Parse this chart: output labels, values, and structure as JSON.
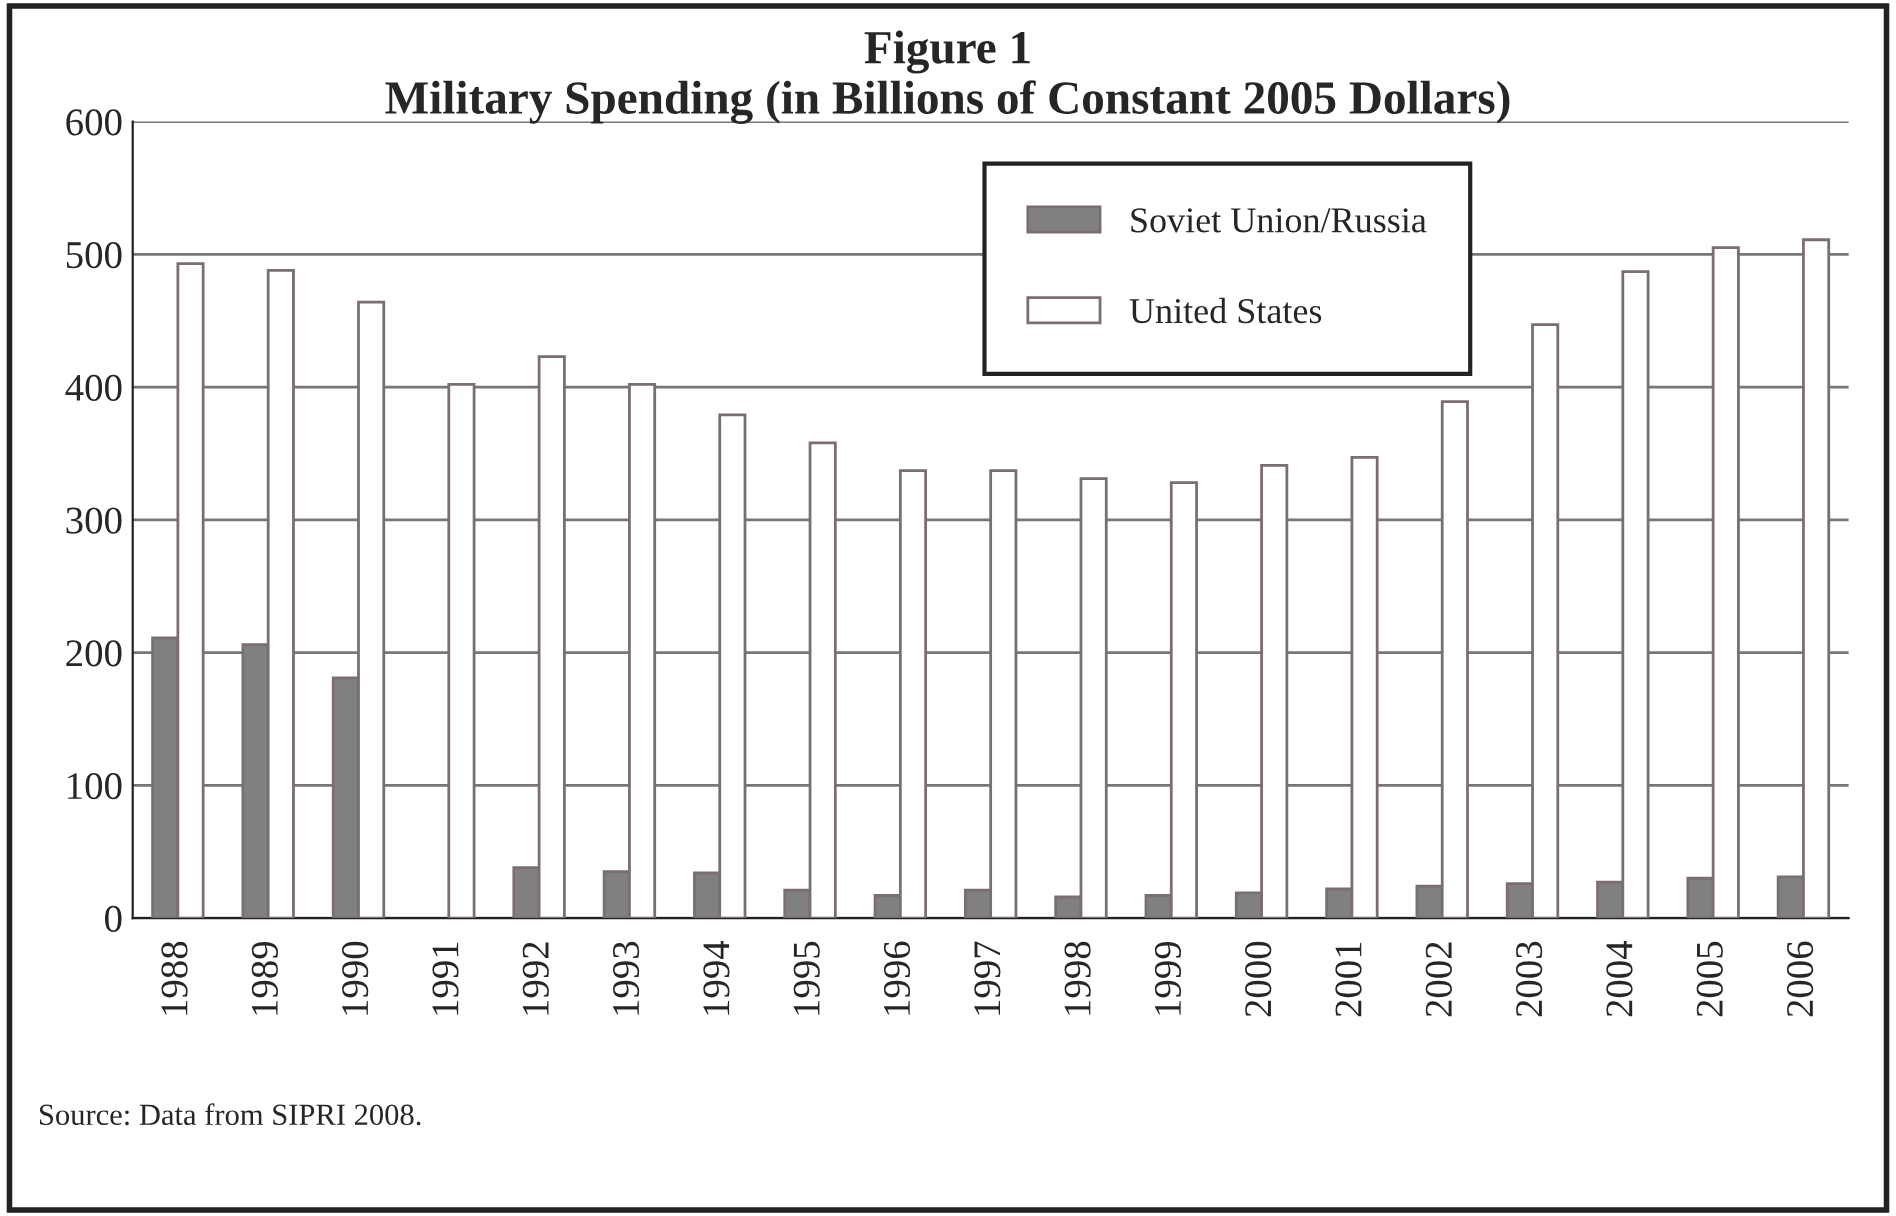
{
  "chart_data": {
    "type": "bar",
    "title": "Figure 1\nMilitary Spending (in Billions of Constant 2005 Dollars)",
    "categories": [
      "1988",
      "1989",
      "1990",
      "1991",
      "1992",
      "1993",
      "1994",
      "1995",
      "1996",
      "1997",
      "1998",
      "1999",
      "2000",
      "2001",
      "2002",
      "2003",
      "2004",
      "2005",
      "2006"
    ],
    "series": [
      {
        "name": "Soviet Union/Russia",
        "color": "#808080",
        "values": [
          211,
          206,
          181,
          null,
          38,
          35,
          34,
          21,
          17,
          21,
          16,
          17,
          19,
          22,
          24,
          26,
          27,
          30,
          31
        ]
      },
      {
        "name": "United States",
        "color": "#ffffff",
        "values": [
          493,
          488,
          464,
          402,
          423,
          402,
          379,
          358,
          337,
          337,
          331,
          328,
          341,
          347,
          389,
          447,
          487,
          505,
          511
        ]
      }
    ],
    "ylim": [
      0,
      600
    ],
    "yticks": [
      0,
      100,
      200,
      300,
      400,
      500,
      600
    ],
    "grid": "y",
    "legend": "top right",
    "annotations": [
      "Source: Data from SIPRI 2008."
    ]
  }
}
